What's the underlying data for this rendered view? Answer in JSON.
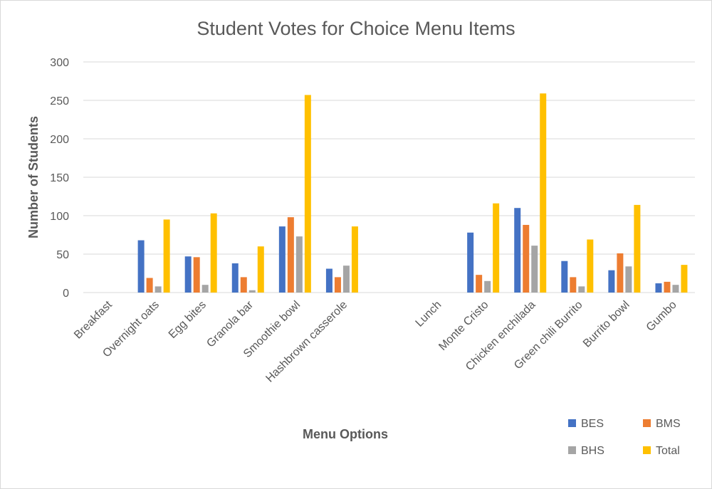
{
  "chart_data": {
    "type": "bar",
    "title": "Student Votes for Choice Menu Items",
    "xlabel": "Menu Options",
    "ylabel": "Number of Students",
    "ylim": [
      0,
      300
    ],
    "yticks": [
      0,
      50,
      100,
      150,
      200,
      250,
      300
    ],
    "grid": true,
    "legend_position": "bottom-right",
    "categories": [
      "Breakfast",
      "Overnight oats",
      "Egg bites",
      "Granola bar",
      "Smoothie bowl",
      "Hashbrown casserole",
      "",
      "Lunch",
      "Monte Cristo",
      "Chicken enchilada",
      "Green chili Burrito",
      "Burrito bowl",
      "Gumbo"
    ],
    "series": [
      {
        "name": "BES",
        "color": "#4472c4",
        "values": [
          null,
          68,
          47,
          38,
          86,
          31,
          null,
          null,
          78,
          110,
          41,
          29,
          12
        ]
      },
      {
        "name": "BMS",
        "color": "#ed7d31",
        "values": [
          null,
          19,
          46,
          20,
          98,
          20,
          null,
          null,
          23,
          88,
          20,
          51,
          14
        ]
      },
      {
        "name": "BHS",
        "color": "#a5a5a5",
        "values": [
          null,
          8,
          10,
          3,
          73,
          35,
          null,
          null,
          15,
          61,
          8,
          34,
          10
        ]
      },
      {
        "name": "Total",
        "color": "#ffc000",
        "values": [
          null,
          95,
          103,
          60,
          257,
          86,
          null,
          null,
          116,
          259,
          69,
          114,
          36
        ]
      }
    ]
  }
}
